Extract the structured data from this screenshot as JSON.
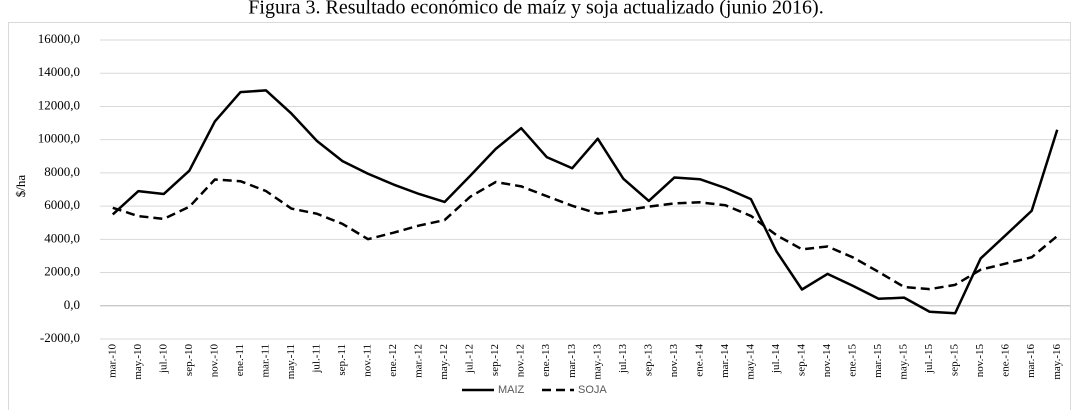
{
  "chart_data": {
    "type": "line",
    "title": "Figura 3. Resultado económico de maíz y soja actualizado (junio 2016).",
    "y_label": "$/ha",
    "categories": [
      "mar.-10",
      "may.-10",
      "jul.-10",
      "sep.-10",
      "nov.-10",
      "ene.-11",
      "mar.-11",
      "may.-11",
      "jul.-11",
      "sep.-11",
      "nov.-11",
      "ene.-12",
      "mar.-12",
      "may.-12",
      "jul.-12",
      "sep.-12",
      "nov.-12",
      "ene.-13",
      "mar.-13",
      "may.-13",
      "jul.-13",
      "sep.-13",
      "nov.-13",
      "ene.-14",
      "mar.-14",
      "may.-14",
      "jul.-14",
      "sep.-14",
      "nov.-14",
      "ene.-15",
      "mar.-15",
      "may.-15",
      "jul.-15",
      "sep.-15",
      "nov.-15",
      "ene.-16",
      "mar.-16",
      "may.-16"
    ],
    "series": [
      {
        "name": "MAIZ",
        "color": "#000000",
        "dash": "solid",
        "values": [
          5500,
          6900,
          6730,
          8130,
          11100,
          12860,
          12970,
          11570,
          9920,
          8710,
          7950,
          7300,
          6730,
          6250,
          7820,
          9440,
          10690,
          8950,
          8280,
          10060,
          7650,
          6310,
          7720,
          7620,
          7090,
          6420,
          3280,
          980,
          1920,
          1200,
          420,
          490,
          -360,
          -450,
          2850,
          4280,
          5720,
          10600
        ]
      },
      {
        "name": "SOJA",
        "color": "#000000",
        "dash": "dashed",
        "values": [
          5900,
          5400,
          5230,
          5960,
          7600,
          7500,
          6910,
          5850,
          5540,
          4930,
          4010,
          4400,
          4830,
          5160,
          6560,
          7450,
          7190,
          6600,
          6020,
          5550,
          5730,
          5970,
          6160,
          6230,
          6050,
          5410,
          4250,
          3400,
          3570,
          2910,
          2040,
          1130,
          1000,
          1260,
          2170,
          2550,
          2920,
          4200
        ]
      }
    ],
    "ylim": [
      -2000,
      16000
    ],
    "yticks": [
      {
        "value": -2000,
        "label": "-2000,0"
      },
      {
        "value": 0,
        "label": "0,0"
      },
      {
        "value": 2000,
        "label": "2000,0"
      },
      {
        "value": 4000,
        "label": "4000,0"
      },
      {
        "value": 6000,
        "label": "6000,0"
      },
      {
        "value": 8000,
        "label": "8000,0"
      },
      {
        "value": 10000,
        "label": "10000,0"
      },
      {
        "value": 12000,
        "label": "12000,0"
      },
      {
        "value": 14000,
        "label": "14000,0"
      },
      {
        "value": 16000,
        "label": "16000,0"
      }
    ],
    "grid": true,
    "legend": "bottom"
  }
}
